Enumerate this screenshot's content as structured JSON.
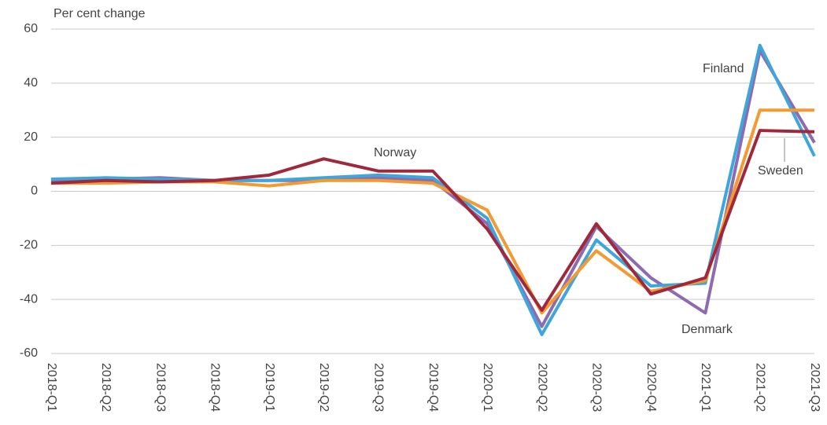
{
  "chart_data": {
    "type": "line",
    "y_axis_label": "Per cent change",
    "categories": [
      "2018-Q1",
      "2018-Q2",
      "2018-Q3",
      "2018-Q4",
      "2019-Q1",
      "2019-Q2",
      "2019-Q3",
      "2019-Q4",
      "2020-Q1",
      "2020-Q2",
      "2020-Q3",
      "2020-Q4",
      "2021-Q1",
      "2021-Q2",
      "2021-Q3"
    ],
    "series": [
      {
        "name": "Denmark",
        "color": "#8c6bb1",
        "values": [
          4,
          4.5,
          5,
          4,
          4,
          4,
          5,
          4,
          -12,
          -50,
          -13,
          -32,
          -45,
          52,
          18
        ]
      },
      {
        "name": "Finland",
        "color": "#3ea6db",
        "values": [
          4.5,
          5,
          4.5,
          4,
          4,
          5,
          6,
          5,
          -10,
          -53,
          -18,
          -35,
          -34,
          54,
          13
        ]
      },
      {
        "name": "Sweden",
        "color": "#f39a32",
        "values": [
          3,
          3,
          3.5,
          3.5,
          2,
          4,
          4,
          3,
          -7,
          -45,
          -22,
          -37,
          -33,
          30,
          30
        ]
      },
      {
        "name": "Norway",
        "color": "#a0283c",
        "values": [
          3,
          4,
          3.5,
          4,
          6,
          12,
          7.5,
          7.5,
          -14,
          -44,
          -12,
          -38,
          -32,
          22.5,
          22
        ]
      }
    ],
    "ylim": [
      -60,
      60
    ],
    "yticks": [
      -60,
      -40,
      -20,
      0,
      20,
      40,
      60
    ],
    "grid": true
  }
}
